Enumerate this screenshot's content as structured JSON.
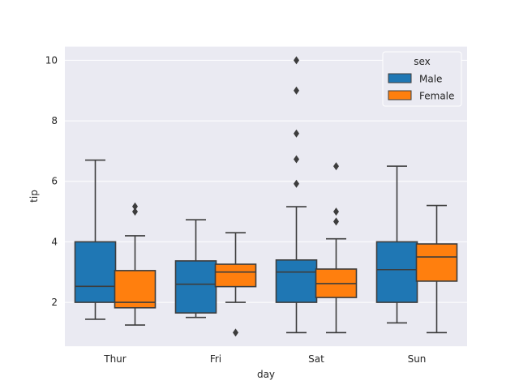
{
  "chart_data": {
    "type": "box",
    "xlabel": "day",
    "ylabel": "tip",
    "categories": [
      "Thur",
      "Fri",
      "Sat",
      "Sun"
    ],
    "ylim": [
      0.55,
      10.45
    ],
    "yticks": [
      2,
      4,
      6,
      8,
      10
    ],
    "grid": true,
    "legend": {
      "title": "sex",
      "placement": "top-right"
    },
    "series": [
      {
        "name": "Male",
        "color": "#1f77b4",
        "boxes": [
          {
            "category": "Thur",
            "whisker_low": 1.44,
            "q1": 2.0,
            "median": 2.53,
            "q3": 4.0,
            "whisker_high": 6.7,
            "outliers": []
          },
          {
            "category": "Fri",
            "whisker_low": 1.5,
            "q1": 1.65,
            "median": 2.6,
            "q3": 3.37,
            "whisker_high": 4.73,
            "outliers": []
          },
          {
            "category": "Sat",
            "whisker_low": 1.0,
            "q1": 2.0,
            "median": 3.0,
            "q3": 3.4,
            "whisker_high": 5.16,
            "outliers": [
              5.92,
              6.73,
              7.58,
              9.0,
              10.0
            ]
          },
          {
            "category": "Sun",
            "whisker_low": 1.32,
            "q1": 2.0,
            "median": 3.08,
            "q3": 4.0,
            "whisker_high": 6.5,
            "outliers": []
          }
        ]
      },
      {
        "name": "Female",
        "color": "#ff7f0e",
        "boxes": [
          {
            "category": "Thur",
            "whisker_low": 1.25,
            "q1": 1.82,
            "median": 2.0,
            "q3": 3.05,
            "whisker_high": 4.2,
            "outliers": [
              5.0,
              5.17
            ]
          },
          {
            "category": "Fri",
            "whisker_low": 2.0,
            "q1": 2.52,
            "median": 3.0,
            "q3": 3.26,
            "whisker_high": 4.3,
            "outliers": [
              1.0
            ]
          },
          {
            "category": "Sat",
            "whisker_low": 1.0,
            "q1": 2.16,
            "median": 2.62,
            "q3": 3.1,
            "whisker_high": 4.1,
            "outliers": [
              4.67,
              5.0,
              6.5
            ]
          },
          {
            "category": "Sun",
            "whisker_low": 1.0,
            "q1": 2.7,
            "median": 3.5,
            "q3": 3.93,
            "whisker_high": 5.2,
            "outliers": []
          }
        ]
      }
    ]
  }
}
